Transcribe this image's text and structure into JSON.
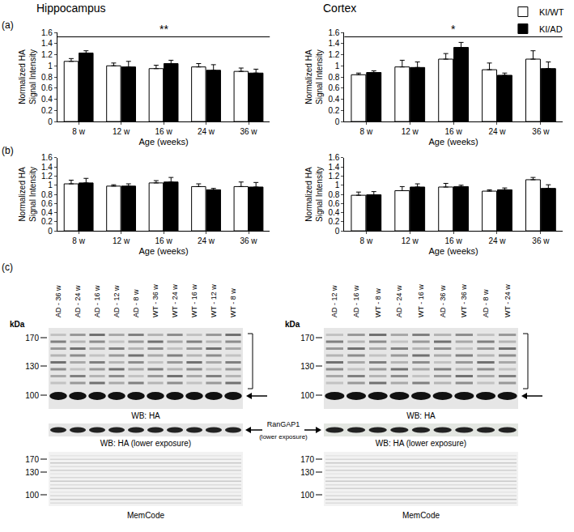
{
  "chart_data": [
    {
      "type": "bar",
      "panel": "(a)",
      "title": "Hippocampus",
      "categories": [
        "8 w",
        "12 w",
        "16 w",
        "24 w",
        "36 w"
      ],
      "xlabel": "Age (weeks)",
      "ylabel": "Normalized HA\nSignal Intensity",
      "ylim": [
        0,
        1.6
      ],
      "yticks": [
        0,
        0.2,
        0.4,
        0.6,
        0.8,
        1,
        1.2,
        1.4,
        1.6
      ],
      "grid": false,
      "annotations": [
        {
          "text": "**"
        }
      ],
      "series": [
        {
          "name": "KI/WT",
          "color": "#ffffff",
          "values": [
            1.08,
            1.0,
            0.95,
            0.98,
            0.9
          ],
          "errors": [
            0.05,
            0.05,
            0.06,
            0.06,
            0.06
          ]
        },
        {
          "name": "KI/AD",
          "color": "#000000",
          "values": [
            1.23,
            0.98,
            1.04,
            0.92,
            0.87
          ],
          "errors": [
            0.04,
            0.1,
            0.06,
            0.1,
            0.07
          ]
        }
      ]
    },
    {
      "type": "bar",
      "title": "Cortex",
      "categories": [
        "8 w",
        "12 w",
        "16 w",
        "24 w",
        "36 w"
      ],
      "xlabel": "Age (weeks)",
      "ylabel": "Normalized HA\nSignal Intensity",
      "ylim": [
        0,
        1.6
      ],
      "yticks": [
        0,
        0.2,
        0.4,
        0.6,
        0.8,
        1,
        1.2,
        1.4,
        1.6
      ],
      "grid": false,
      "legend": "top right",
      "annotations": [
        {
          "text": "*"
        }
      ],
      "series": [
        {
          "name": "KI/WT",
          "color": "#ffffff",
          "values": [
            0.84,
            0.98,
            1.12,
            0.93,
            1.12
          ],
          "errors": [
            0.03,
            0.12,
            0.1,
            0.12,
            0.15
          ]
        },
        {
          "name": "KI/AD",
          "color": "#000000",
          "values": [
            0.88,
            0.97,
            1.33,
            0.83,
            0.95
          ],
          "errors": [
            0.03,
            0.1,
            0.09,
            0.04,
            0.12
          ]
        }
      ]
    },
    {
      "type": "bar",
      "panel": "(b)",
      "categories": [
        "8 w",
        "12 w",
        "16 w",
        "24 w",
        "36 w"
      ],
      "xlabel": "Age (weeks)",
      "ylabel": "Normalized HA\nSignal Intensity",
      "ylim": [
        0,
        1.6
      ],
      "yticks": [
        0,
        0.2,
        0.4,
        0.6,
        0.8,
        1,
        1.2,
        1.4,
        1.6
      ],
      "grid": false,
      "series": [
        {
          "name": "KI/WT",
          "color": "#ffffff",
          "values": [
            1.03,
            0.98,
            1.05,
            0.97,
            0.97
          ],
          "errors": [
            0.08,
            0.03,
            0.05,
            0.06,
            0.1
          ]
        },
        {
          "name": "KI/AD",
          "color": "#000000",
          "values": [
            1.05,
            0.98,
            1.07,
            0.9,
            0.96
          ],
          "errors": [
            0.1,
            0.05,
            0.1,
            0.03,
            0.1
          ]
        }
      ]
    },
    {
      "type": "bar",
      "categories": [
        "8 w",
        "12 w",
        "16 w",
        "24 w",
        "36 w"
      ],
      "xlabel": "Age (weeks)",
      "ylabel": "Normalized HA\nSignal Intensity",
      "ylim": [
        0,
        1.6
      ],
      "yticks": [
        0,
        0.2,
        0.4,
        0.6,
        0.8,
        1,
        1.2,
        1.4,
        1.6
      ],
      "grid": false,
      "series": [
        {
          "name": "KI/WT",
          "color": "#ffffff",
          "values": [
            0.78,
            0.88,
            0.96,
            0.87,
            1.12
          ],
          "errors": [
            0.07,
            0.09,
            0.08,
            0.03,
            0.05
          ]
        },
        {
          "name": "KI/AD",
          "color": "#000000",
          "values": [
            0.79,
            0.96,
            0.97,
            0.9,
            0.93
          ],
          "errors": [
            0.07,
            0.07,
            0.03,
            0.04,
            0.08
          ]
        }
      ]
    }
  ],
  "blots": {
    "panel": "(c)",
    "kda_label": "kDa",
    "band_label": "RanGAP1",
    "band_sublabel": "(lower exposure)",
    "sides": [
      {
        "lanes": [
          "AD - 36 w",
          "AD - 24 w",
          "AD - 16 w",
          "AD - 12 w",
          "AD - 8 w",
          "WT - 36 w",
          "WT - 24 w",
          "WT - 16 w",
          "WT - 12 w",
          "WT - 8 w"
        ],
        "panels": [
          {
            "label": "WB: HA",
            "markers": [
              170,
              130,
              100
            ]
          },
          {
            "label": "WB: HA (lower exposure)"
          },
          {
            "label": "MemCode",
            "markers": [
              170,
              130,
              100
            ]
          }
        ]
      },
      {
        "lanes": [
          "AD - 12 w",
          "AD - 16 w",
          "WT - 8 w",
          "AD - 24 w",
          "WT - 16 w",
          "AD - 36 w",
          "WT - 36 w",
          "AD - 8 w",
          "WT - 24 w"
        ],
        "panels": [
          {
            "label": "WB: HA",
            "markers": [
              170,
              130,
              100
            ]
          },
          {
            "label": "WB: HA (lower exposure)"
          },
          {
            "label": "MemCode",
            "markers": [
              170,
              130,
              100
            ]
          }
        ]
      }
    ]
  }
}
